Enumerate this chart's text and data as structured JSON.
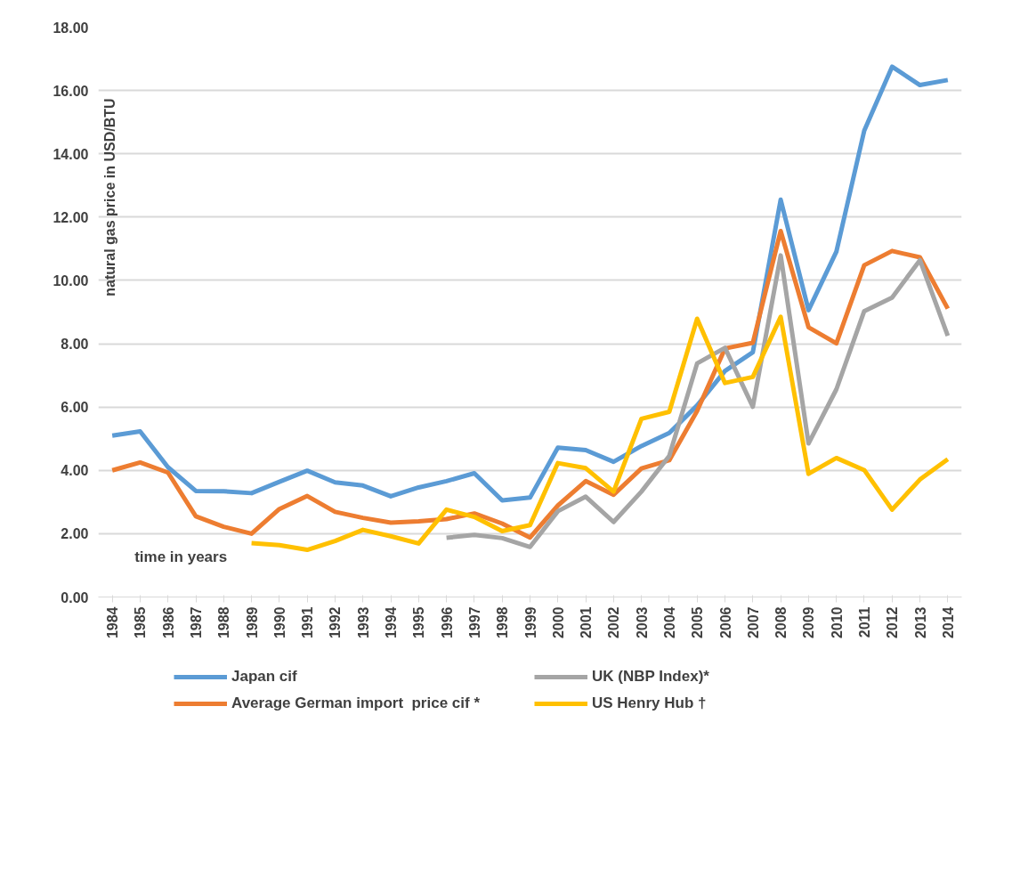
{
  "chart_data": {
    "type": "line",
    "xlabel": "time in years",
    "ylabel": "natural gas price in USD/BTU",
    "categories": [
      "1984",
      "1985",
      "1986",
      "1987",
      "1988",
      "1989",
      "1990",
      "1991",
      "1992",
      "1993",
      "1994",
      "1995",
      "1996",
      "1997",
      "1998",
      "1999",
      "2000",
      "2001",
      "2002",
      "2003",
      "2004",
      "2005",
      "2006",
      "2007",
      "2008",
      "2009",
      "2010",
      "2011",
      "2012",
      "2013",
      "2014"
    ],
    "ylim": [
      0,
      18
    ],
    "yticks": [
      {
        "value": 0,
        "label": "0.00"
      },
      {
        "value": 2,
        "label": "2.00"
      },
      {
        "value": 4,
        "label": "4.00"
      },
      {
        "value": 6,
        "label": "6.00"
      },
      {
        "value": 8,
        "label": "8.00"
      },
      {
        "value": 10,
        "label": "10.00"
      },
      {
        "value": 12,
        "label": "12.00"
      },
      {
        "value": 14,
        "label": "14.00"
      },
      {
        "value": 16,
        "label": "16.00"
      },
      {
        "value": 18,
        "label": "18.00"
      }
    ],
    "grid": "y",
    "legend": "bottom",
    "marker": "none",
    "line_style": "solid",
    "series": [
      {
        "name": "Japan cif",
        "color": "#5b9bd5",
        "values": [
          5.1,
          5.23,
          4.1,
          3.35,
          3.34,
          3.28,
          3.64,
          3.99,
          3.62,
          3.52,
          3.18,
          3.46,
          3.66,
          3.91,
          3.05,
          3.14,
          4.72,
          4.64,
          4.27,
          4.77,
          5.18,
          6.05,
          7.14,
          7.73,
          12.55,
          9.06,
          10.91,
          14.73,
          16.75,
          16.17,
          16.33
        ]
      },
      {
        "name": "Average German import  price cif *",
        "color": "#ed7d31",
        "values": [
          4.0,
          4.25,
          3.93,
          2.55,
          2.22,
          2.0,
          2.78,
          3.19,
          2.69,
          2.5,
          2.35,
          2.39,
          2.46,
          2.64,
          2.32,
          1.88,
          2.89,
          3.66,
          3.23,
          4.06,
          4.32,
          5.88,
          7.85,
          8.03,
          11.56,
          8.52,
          8.01,
          10.48,
          10.93,
          10.73,
          9.11
        ]
      },
      {
        "name": "UK (NBP Index)*",
        "color": "#a5a5a5",
        "values": [
          null,
          null,
          null,
          null,
          null,
          null,
          null,
          null,
          null,
          null,
          null,
          null,
          1.87,
          1.96,
          1.86,
          1.58,
          2.71,
          3.17,
          2.37,
          3.33,
          4.46,
          7.38,
          7.87,
          6.01,
          10.79,
          4.85,
          6.56,
          9.03,
          9.46,
          10.64,
          8.25
        ]
      },
      {
        "name": "US Henry Hub †",
        "color": "#ffc000",
        "values": [
          null,
          null,
          null,
          null,
          null,
          1.7,
          1.64,
          1.49,
          1.77,
          2.12,
          1.92,
          1.69,
          2.76,
          2.53,
          2.08,
          2.27,
          4.23,
          4.07,
          3.33,
          5.63,
          5.85,
          8.79,
          6.76,
          6.95,
          8.85,
          3.89,
          4.39,
          4.01,
          2.76,
          3.71,
          4.35
        ]
      }
    ]
  }
}
